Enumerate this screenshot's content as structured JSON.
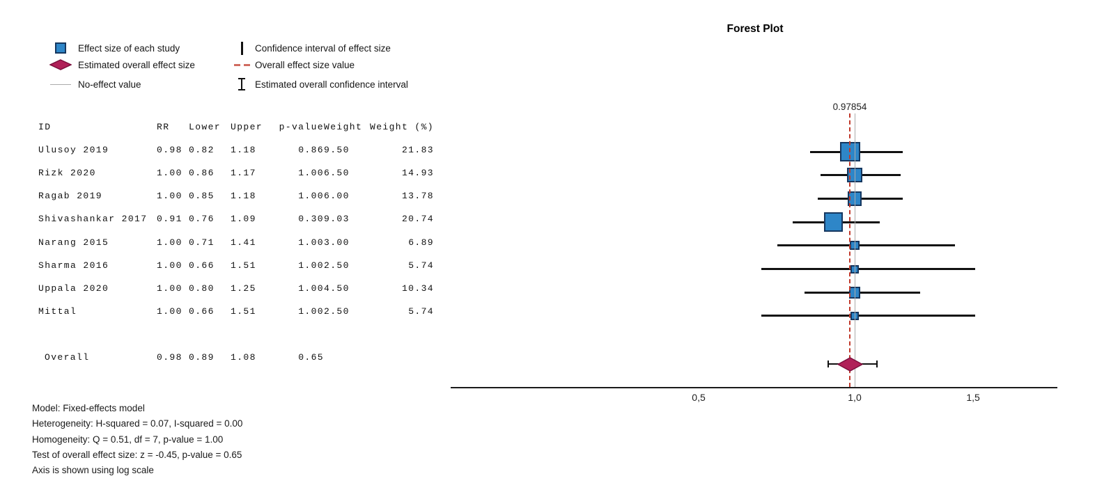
{
  "legend": {
    "left": [
      {
        "icon": "effect-size-square-icon",
        "label": "Effect size of each study"
      },
      {
        "icon": "overall-effect-diamond-icon",
        "label": "Estimated overall effect size"
      },
      {
        "icon": "no-effect-line-icon",
        "label": "No-effect value"
      }
    ],
    "right": [
      {
        "icon": "confidence-interval-bar-icon",
        "label": "Confidence interval of effect size"
      },
      {
        "icon": "overall-effect-dashed-line-icon",
        "label": "Overall effect size value"
      },
      {
        "icon": "overall-ci-ibeam-icon",
        "label": "Estimated overall confidence interval"
      }
    ]
  },
  "table": {
    "headers": [
      "ID",
      "RR",
      "Lower",
      "Upper",
      "p-value",
      "Weight",
      "Weight (%)"
    ]
  },
  "plot": {
    "title": "Forest Plot",
    "effect_label": "0.97854"
  },
  "notes": [
    "Model: Fixed-effects model",
    "Heterogeneity: H-squared = 0.07, I-squared = 0.00",
    "Homogeneity: Q = 0.51, df = 7, p-value = 1.00",
    "Test of overall effect size: z = -0.45, p-value = 0.65",
    "Axis is shown using log scale"
  ],
  "chart_data": {
    "type": "forest",
    "scale": "log",
    "no_effect_value": 1.0,
    "overall_effect_value": 0.97854,
    "x_ticks": [
      {
        "value": 0.5,
        "label": "0,5"
      },
      {
        "value": 1.0,
        "label": "1,0"
      },
      {
        "value": 1.5,
        "label": "1,5"
      }
    ],
    "studies": [
      {
        "id": "Ulusoy 2019",
        "rr": 0.98,
        "lower": 0.82,
        "upper": 1.18,
        "p": "0.86",
        "weight": 9.5,
        "weight_pct": "21.83"
      },
      {
        "id": "Rizk 2020",
        "rr": 1.0,
        "lower": 0.86,
        "upper": 1.17,
        "p": "1.00",
        "weight": 6.5,
        "weight_pct": "14.93"
      },
      {
        "id": "Ragab 2019",
        "rr": 1.0,
        "lower": 0.85,
        "upper": 1.18,
        "p": "1.00",
        "weight": 6.0,
        "weight_pct": "13.78"
      },
      {
        "id": "Shivashankar 2017",
        "rr": 0.91,
        "lower": 0.76,
        "upper": 1.09,
        "p": "0.30",
        "weight": 9.03,
        "weight_pct": "20.74"
      },
      {
        "id": "Narang 2015",
        "rr": 1.0,
        "lower": 0.71,
        "upper": 1.41,
        "p": "1.00",
        "weight": 3.0,
        "weight_pct": "6.89"
      },
      {
        "id": "Sharma 2016",
        "rr": 1.0,
        "lower": 0.66,
        "upper": 1.51,
        "p": "1.00",
        "weight": 2.5,
        "weight_pct": "5.74"
      },
      {
        "id": "Uppala 2020",
        "rr": 1.0,
        "lower": 0.8,
        "upper": 1.25,
        "p": "1.00",
        "weight": 4.5,
        "weight_pct": "10.34"
      },
      {
        "id": "Mittal",
        "rr": 1.0,
        "lower": 0.66,
        "upper": 1.51,
        "p": "1.00",
        "weight": 2.5,
        "weight_pct": "5.74"
      }
    ],
    "overall": {
      "id": "Overall",
      "rr": 0.98,
      "lower": 0.89,
      "upper": 1.08,
      "p": "0.65"
    },
    "colors": {
      "square_fill": "#2E86C8",
      "square_border": "#16375F",
      "diamond_fill": "#B02058",
      "diamond_border": "#7C0F3D",
      "overall_line": "#C0392B",
      "no_effect_line": "#ABABAB",
      "ci_line": "#111111",
      "axis_line": "#1A1A1A"
    }
  }
}
